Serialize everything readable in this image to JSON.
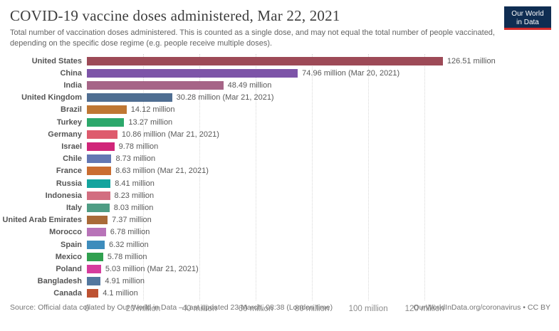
{
  "header": {
    "title": "COVID-19 vaccine doses administered, Mar 22, 2021",
    "subtitle": "Total number of vaccination doses administered. This is counted as a single dose, and may not equal the total number of people vaccinated, depending on the specific dose regime (e.g. people receive multiple doses).",
    "logo": {
      "line1": "Our World",
      "line2": "in Data",
      "bg_color": "#0f2d52",
      "underline_color": "#d42b2b"
    }
  },
  "chart_data": {
    "type": "bar",
    "orientation": "horizontal",
    "unit": "million doses",
    "axis_max": 164,
    "xticks": [
      0,
      20,
      40,
      60,
      80,
      100,
      120
    ],
    "xtick_labels": [
      "0",
      "20 million",
      "40 million",
      "60 million",
      "80 million",
      "100 million",
      "120 million"
    ],
    "grid": "dotted-vertical",
    "bars": [
      {
        "label": "United States",
        "value": 126.51,
        "value_label": "126.51 million",
        "color": "#9d4a57"
      },
      {
        "label": "China",
        "value": 74.96,
        "value_label": "74.96 million (Mar 20, 2021)",
        "color": "#7d54a8"
      },
      {
        "label": "India",
        "value": 48.49,
        "value_label": "48.49 million",
        "color": "#a66487"
      },
      {
        "label": "United Kingdom",
        "value": 30.28,
        "value_label": "30.28 million (Mar 21, 2021)",
        "color": "#4f6e92"
      },
      {
        "label": "Brazil",
        "value": 14.12,
        "value_label": "14.12 million",
        "color": "#bf7733"
      },
      {
        "label": "Turkey",
        "value": 13.27,
        "value_label": "13.27 million",
        "color": "#2ca86b"
      },
      {
        "label": "Germany",
        "value": 10.86,
        "value_label": "10.86 million (Mar 21, 2021)",
        "color": "#de5b6d"
      },
      {
        "label": "Israel",
        "value": 9.78,
        "value_label": "9.78 million",
        "color": "#d02579"
      },
      {
        "label": "Chile",
        "value": 8.73,
        "value_label": "8.73 million",
        "color": "#6377b3"
      },
      {
        "label": "France",
        "value": 8.63,
        "value_label": "8.63 million (Mar 21, 2021)",
        "color": "#ca6d31"
      },
      {
        "label": "Russia",
        "value": 8.41,
        "value_label": "8.41 million",
        "color": "#14a49e"
      },
      {
        "label": "Indonesia",
        "value": 8.23,
        "value_label": "8.23 million",
        "color": "#d26e80"
      },
      {
        "label": "Italy",
        "value": 8.03,
        "value_label": "8.03 million",
        "color": "#4f9d84"
      },
      {
        "label": "United Arab Emirates",
        "value": 7.37,
        "value_label": "7.37 million",
        "color": "#a96a38"
      },
      {
        "label": "Morocco",
        "value": 6.78,
        "value_label": "6.78 million",
        "color": "#b873b8"
      },
      {
        "label": "Spain",
        "value": 6.32,
        "value_label": "6.32 million",
        "color": "#3d8cbc"
      },
      {
        "label": "Mexico",
        "value": 5.78,
        "value_label": "5.78 million",
        "color": "#30a04f"
      },
      {
        "label": "Poland",
        "value": 5.03,
        "value_label": "5.03 million (Mar 21, 2021)",
        "color": "#d63c9d"
      },
      {
        "label": "Bangladesh",
        "value": 4.91,
        "value_label": "4.91 million",
        "color": "#53779e"
      },
      {
        "label": "Canada",
        "value": 4.1,
        "value_label": "4.1 million",
        "color": "#bd5232"
      }
    ]
  },
  "footer": {
    "source": "Source: Official data collated by Our World in Data – Last updated 23 March, 08:38 (London time)",
    "license": "OurWorldInData.org/coronavirus • CC BY"
  }
}
